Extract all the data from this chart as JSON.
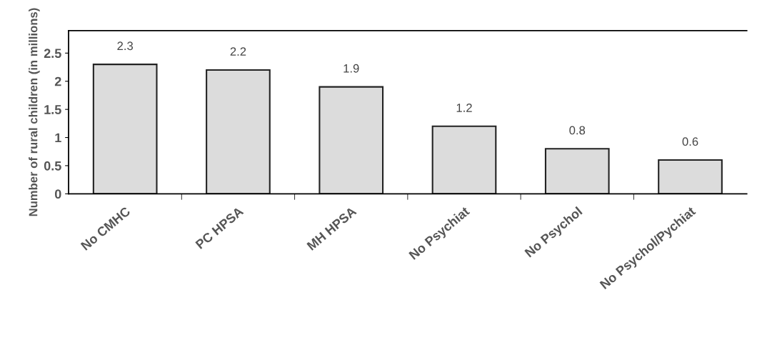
{
  "chart_data": {
    "type": "bar",
    "ylabel": "Number of rural children (in millions)",
    "categories": [
      "No CMHC",
      "PC HPSA",
      "MH HPSA",
      "No Psychiat",
      "No Psychol",
      "No Psychol/Pychiat"
    ],
    "values": [
      2.3,
      2.2,
      1.9,
      1.2,
      0.8,
      0.6
    ],
    "color": "#dcdcdc",
    "ylim": [
      0,
      2.9
    ],
    "yticks": [
      0,
      0.5,
      1,
      1.5,
      2,
      2.5
    ],
    "grid": false,
    "data_labels": true
  }
}
